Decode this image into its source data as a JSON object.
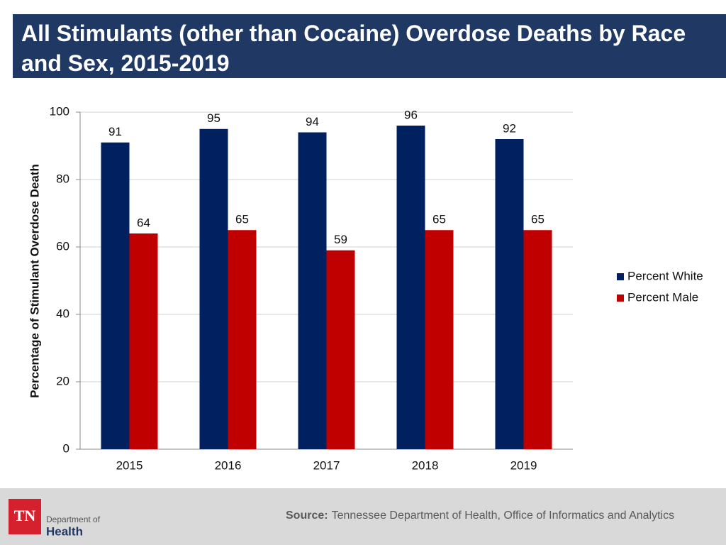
{
  "header": {
    "title": "All Stimulants (other than Cocaine) Overdose Deaths by Race and Sex, 2015-2019"
  },
  "chart_data": {
    "type": "bar",
    "categories": [
      "2015",
      "2016",
      "2017",
      "2018",
      "2019"
    ],
    "series": [
      {
        "name": "Percent White",
        "color": "#002060",
        "values": [
          91,
          95,
          94,
          96,
          92
        ]
      },
      {
        "name": "Percent Male",
        "color": "#c00000",
        "values": [
          64,
          65,
          59,
          65,
          65
        ]
      }
    ],
    "y_label": "Percentage of Stimulant Overdose Death",
    "ylim": [
      0,
      100
    ],
    "yticks": [
      0,
      20,
      40,
      60,
      80,
      100
    ],
    "grid": true,
    "legend": "right"
  },
  "footer": {
    "source_label": "Source:",
    "source_text": "Tennessee Department of Health, Office of Informatics and Analytics",
    "logo": {
      "mark": "TN",
      "line1": "Department of",
      "line2": "Health"
    }
  }
}
